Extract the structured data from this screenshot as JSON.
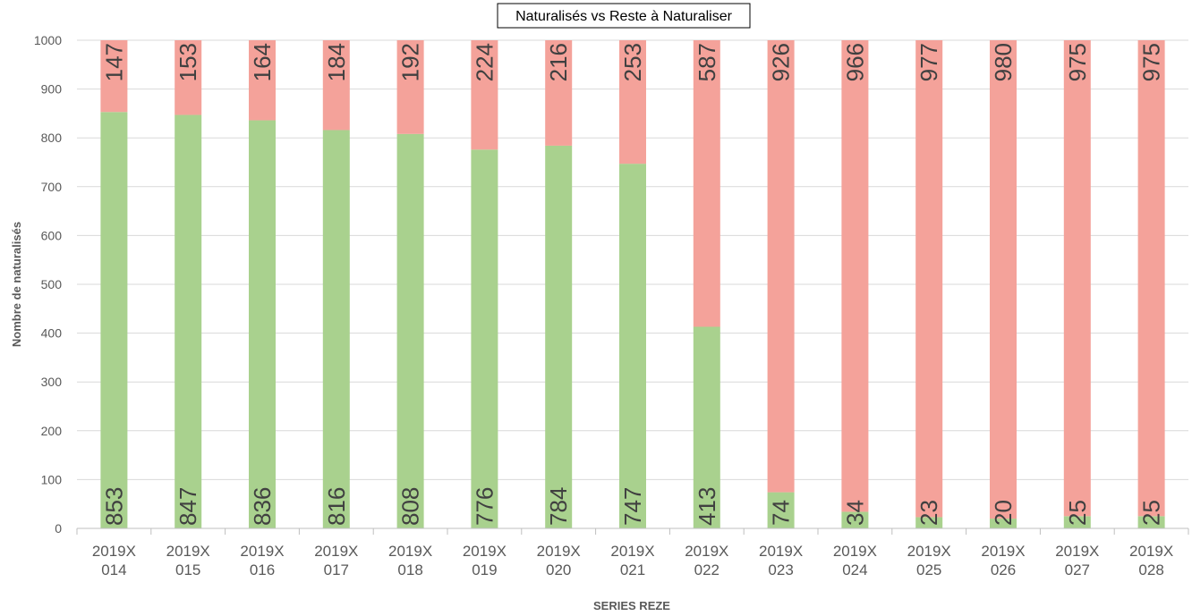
{
  "chart_data": {
    "type": "bar",
    "stacked": true,
    "title": "Naturalisés vs Reste à Naturaliser",
    "xlabel": "SERIES REZE",
    "ylabel": "Nombre de naturalisés",
    "ylim": [
      0,
      1000
    ],
    "yticks": [
      "0",
      "100",
      "200",
      "300",
      "400",
      "500",
      "600",
      "700",
      "800",
      "900",
      "1000"
    ],
    "grid": true,
    "legend": "none",
    "categories": [
      [
        "2019X",
        "014"
      ],
      [
        "2019X",
        "015"
      ],
      [
        "2019X",
        "016"
      ],
      [
        "2019X",
        "017"
      ],
      [
        "2019X",
        "018"
      ],
      [
        "2019X",
        "019"
      ],
      [
        "2019X",
        "020"
      ],
      [
        "2019X",
        "021"
      ],
      [
        "2019X",
        "022"
      ],
      [
        "2019X",
        "023"
      ],
      [
        "2019X",
        "024"
      ],
      [
        "2019X",
        "025"
      ],
      [
        "2019X",
        "026"
      ],
      [
        "2019X",
        "027"
      ],
      [
        "2019X",
        "028"
      ]
    ],
    "series": [
      {
        "color": "#a9d18e",
        "values": [
          853,
          847,
          836,
          816,
          808,
          776,
          784,
          747,
          413,
          74,
          34,
          23,
          20,
          25,
          25
        ]
      },
      {
        "color": "#f4a29a",
        "values": [
          147,
          153,
          164,
          184,
          192,
          224,
          216,
          253,
          587,
          926,
          966,
          977,
          980,
          975,
          975
        ]
      }
    ]
  }
}
